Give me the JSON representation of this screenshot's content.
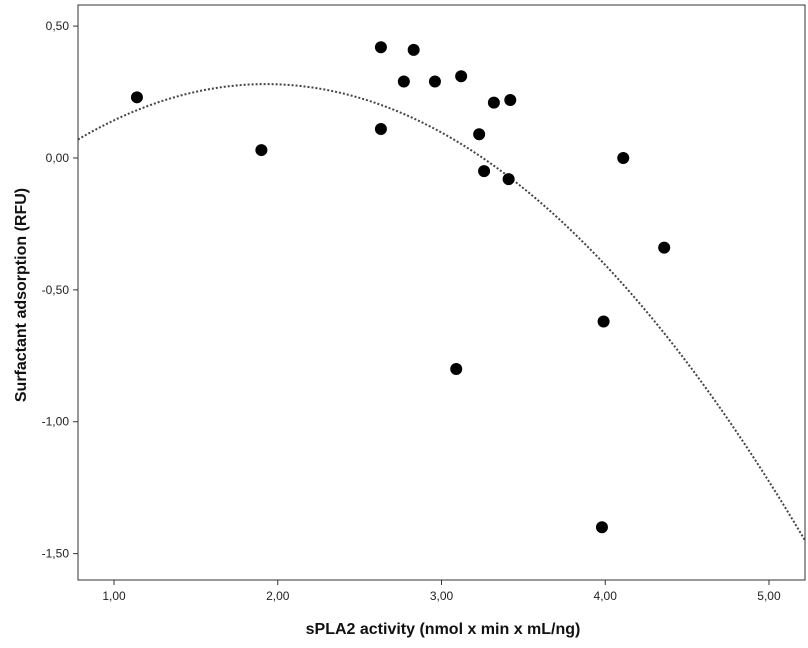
{
  "chart_data": {
    "type": "scatter",
    "xlabel": "sPLA2 activity (nmol x min x mL/ng)",
    "ylabel": "Surfactant adsorption (RFU)",
    "xlim": [
      0.78,
      5.22
    ],
    "ylim": [
      -1.6,
      0.58
    ],
    "x_ticks": [
      1.0,
      2.0,
      3.0,
      4.0,
      5.0
    ],
    "x_tick_labels": [
      "1,00",
      "2,00",
      "3,00",
      "4,00",
      "5,00"
    ],
    "y_ticks": [
      0.5,
      0.0,
      -0.5,
      -1.0,
      -1.5
    ],
    "y_tick_labels": [
      "0,50",
      "0,00",
      "-0,50",
      "-1,00",
      "-1,50"
    ],
    "grid": false,
    "points": [
      {
        "x": 1.14,
        "y": 0.23
      },
      {
        "x": 1.9,
        "y": 0.03
      },
      {
        "x": 2.63,
        "y": 0.42
      },
      {
        "x": 2.63,
        "y": 0.11
      },
      {
        "x": 2.77,
        "y": 0.29
      },
      {
        "x": 2.83,
        "y": 0.41
      },
      {
        "x": 2.96,
        "y": 0.29
      },
      {
        "x": 3.09,
        "y": -0.8
      },
      {
        "x": 3.12,
        "y": 0.31
      },
      {
        "x": 3.23,
        "y": 0.09
      },
      {
        "x": 3.26,
        "y": -0.05
      },
      {
        "x": 3.32,
        "y": 0.21
      },
      {
        "x": 3.41,
        "y": -0.08
      },
      {
        "x": 3.42,
        "y": 0.22
      },
      {
        "x": 3.98,
        "y": -1.4
      },
      {
        "x": 3.99,
        "y": -0.62
      },
      {
        "x": 4.11,
        "y": 0.0
      },
      {
        "x": 4.36,
        "y": -0.34
      }
    ],
    "fit": {
      "type": "quadratic",
      "style": "dotted",
      "points": [
        {
          "x": 0.78,
          "y": 0.07
        },
        {
          "x": 1.95,
          "y": 0.28
        },
        {
          "x": 5.22,
          "y": -1.45
        }
      ]
    },
    "colors": {
      "points": "#000000",
      "fit": "#444444",
      "axes": "#333333"
    }
  }
}
